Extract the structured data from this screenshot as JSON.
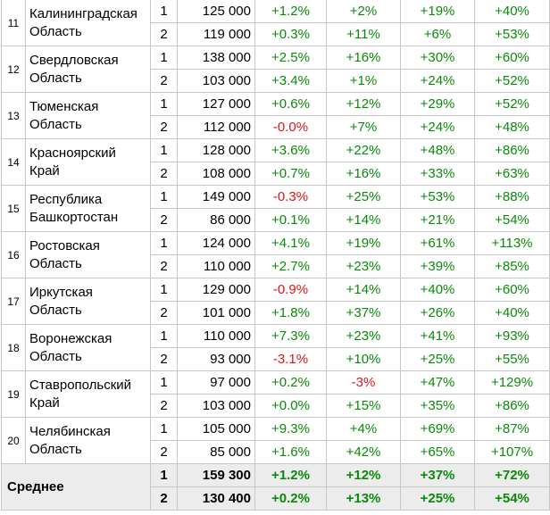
{
  "rows": [
    {
      "num": "11",
      "region": [
        "Калининградская",
        "Область"
      ],
      "lines": [
        {
          "group": "1",
          "salary": "125 000",
          "changes": [
            "+1.2%",
            "+2%",
            "+19%",
            "+40%"
          ]
        },
        {
          "group": "2",
          "salary": "119 000",
          "changes": [
            "+0.3%",
            "+11%",
            "+6%",
            "+53%"
          ]
        }
      ]
    },
    {
      "num": "12",
      "region": [
        "Свердловская",
        "Область"
      ],
      "lines": [
        {
          "group": "1",
          "salary": "138 000",
          "changes": [
            "+2.5%",
            "+16%",
            "+30%",
            "+60%"
          ]
        },
        {
          "group": "2",
          "salary": "103 000",
          "changes": [
            "+3.4%",
            "+1%",
            "+24%",
            "+52%"
          ]
        }
      ]
    },
    {
      "num": "13",
      "region": [
        "Тюменская",
        "Область"
      ],
      "lines": [
        {
          "group": "1",
          "salary": "127 000",
          "changes": [
            "+0.6%",
            "+12%",
            "+29%",
            "+52%"
          ]
        },
        {
          "group": "2",
          "salary": "112 000",
          "changes": [
            "-0.0%",
            "+7%",
            "+24%",
            "+48%"
          ]
        }
      ]
    },
    {
      "num": "14",
      "region": [
        "Красноярский",
        "Край"
      ],
      "lines": [
        {
          "group": "1",
          "salary": "128 000",
          "changes": [
            "+3.6%",
            "+22%",
            "+48%",
            "+86%"
          ]
        },
        {
          "group": "2",
          "salary": "108 000",
          "changes": [
            "+0.7%",
            "+16%",
            "+33%",
            "+63%"
          ]
        }
      ]
    },
    {
      "num": "15",
      "region": [
        "Республика",
        "Башкортостан"
      ],
      "lines": [
        {
          "group": "1",
          "salary": "149 000",
          "changes": [
            "-0.3%",
            "+25%",
            "+53%",
            "+88%"
          ]
        },
        {
          "group": "2",
          "salary": "86 000",
          "changes": [
            "+0.1%",
            "+14%",
            "+21%",
            "+54%"
          ]
        }
      ]
    },
    {
      "num": "16",
      "region": [
        "Ростовская",
        "Область"
      ],
      "lines": [
        {
          "group": "1",
          "salary": "124 000",
          "changes": [
            "+4.1%",
            "+19%",
            "+61%",
            "+113%"
          ]
        },
        {
          "group": "2",
          "salary": "110 000",
          "changes": [
            "+2.7%",
            "+23%",
            "+39%",
            "+85%"
          ]
        }
      ]
    },
    {
      "num": "17",
      "region": [
        "Иркутская",
        "Область"
      ],
      "lines": [
        {
          "group": "1",
          "salary": "129 000",
          "changes": [
            "-0.9%",
            "+14%",
            "+40%",
            "+60%"
          ]
        },
        {
          "group": "2",
          "salary": "101 000",
          "changes": [
            "+1.8%",
            "+37%",
            "+26%",
            "+40%"
          ]
        }
      ]
    },
    {
      "num": "18",
      "region": [
        "Воронежская",
        "Область"
      ],
      "lines": [
        {
          "group": "1",
          "salary": "110 000",
          "changes": [
            "+7.3%",
            "+23%",
            "+41%",
            "+93%"
          ]
        },
        {
          "group": "2",
          "salary": "93 000",
          "changes": [
            "-3.1%",
            "+10%",
            "+25%",
            "+55%"
          ]
        }
      ]
    },
    {
      "num": "19",
      "region": [
        "Ставропольский",
        "Край"
      ],
      "lines": [
        {
          "group": "1",
          "salary": "97 000",
          "changes": [
            "+0.2%",
            "-3%",
            "+47%",
            "+129%"
          ]
        },
        {
          "group": "2",
          "salary": "103 000",
          "changes": [
            "+0.0%",
            "+15%",
            "+35%",
            "+86%"
          ]
        }
      ]
    },
    {
      "num": "20",
      "region": [
        "Челябинская",
        "Область"
      ],
      "lines": [
        {
          "group": "1",
          "salary": "105 000",
          "changes": [
            "+9.3%",
            "+4%",
            "+69%",
            "+87%"
          ]
        },
        {
          "group": "2",
          "salary": "85 000",
          "changes": [
            "+1.6%",
            "+42%",
            "+65%",
            "+107%"
          ]
        }
      ]
    }
  ],
  "average": {
    "label": "Среднее",
    "lines": [
      {
        "group": "1",
        "salary": "159 300",
        "changes": [
          "+1.2%",
          "+12%",
          "+37%",
          "+72%"
        ]
      },
      {
        "group": "2",
        "salary": "130 400",
        "changes": [
          "+0.2%",
          "+13%",
          "+25%",
          "+54%"
        ]
      }
    ]
  },
  "colors": {
    "positive": "#0a8a0a",
    "negative": "#e01414",
    "average_bg": "#ececec",
    "border": "#c8c8c8"
  }
}
